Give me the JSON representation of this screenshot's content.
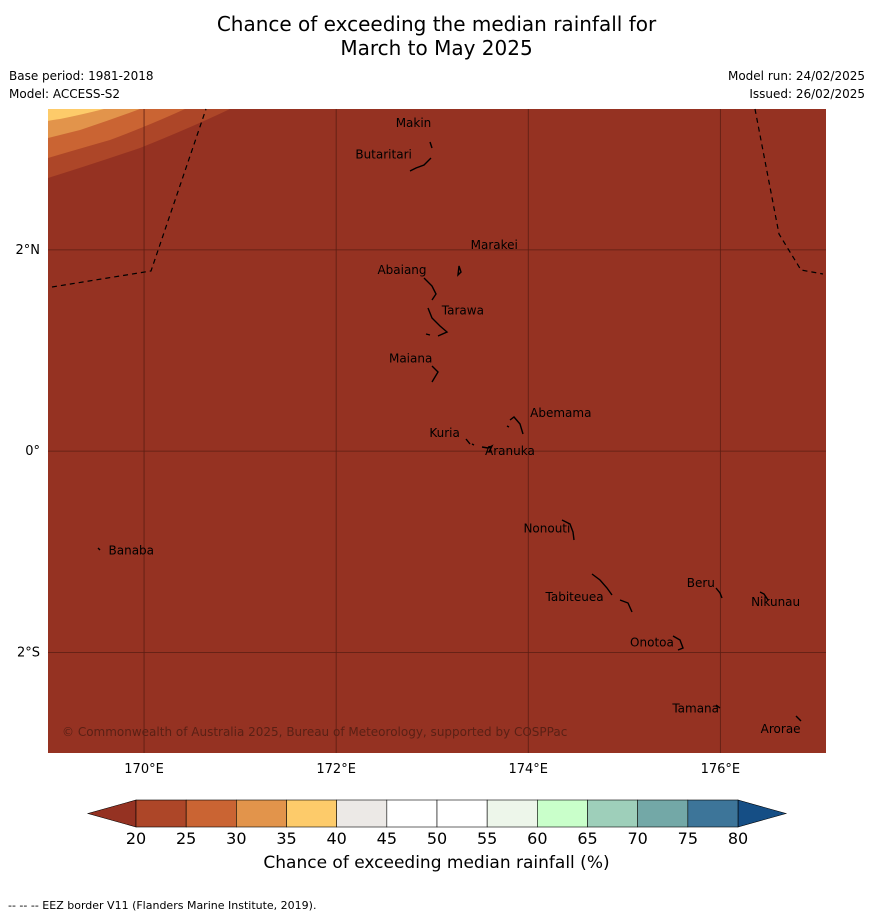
{
  "title_line1": "Chance of exceeding the median rainfall for",
  "title_line2": "March to May 2025",
  "base_period": "Base period: 1981-2018",
  "model": "Model: ACCESS-S2",
  "model_run": "Model run: 24/02/2025",
  "issued": "Issued: 26/02/2025",
  "map": {
    "lon_range": [
      169.0,
      177.1
    ],
    "lat_range": [
      -3.0,
      3.4
    ],
    "background_color": "#953222",
    "lat_ticks": [
      {
        "value": 2,
        "label": "2°N"
      },
      {
        "value": 0,
        "label": "0°"
      },
      {
        "value": -2,
        "label": "2°S"
      }
    ],
    "lon_ticks": [
      {
        "value": 170,
        "label": "170°E"
      },
      {
        "value": 172,
        "label": "172°E"
      },
      {
        "value": 174,
        "label": "174°E"
      },
      {
        "value": 176,
        "label": "176°E"
      }
    ],
    "places": [
      {
        "name": "Makin",
        "lon": 172.62,
        "lat": 3.26
      },
      {
        "name": "Butaritari",
        "lon": 172.2,
        "lat": 2.95
      },
      {
        "name": "Marakei",
        "lon": 173.4,
        "lat": 2.05
      },
      {
        "name": "Abaiang",
        "lon": 172.43,
        "lat": 1.8
      },
      {
        "name": "Tarawa",
        "lon": 173.1,
        "lat": 1.4
      },
      {
        "name": "Maiana",
        "lon": 172.55,
        "lat": 0.92
      },
      {
        "name": "Abemama",
        "lon": 174.02,
        "lat": 0.38
      },
      {
        "name": "Kuria",
        "lon": 172.97,
        "lat": 0.18
      },
      {
        "name": "Aranuka",
        "lon": 173.55,
        "lat": 0.0
      },
      {
        "name": "Nonouti",
        "lon": 173.95,
        "lat": -0.77
      },
      {
        "name": "Banaba",
        "lon": 169.63,
        "lat": -0.99
      },
      {
        "name": "Beru",
        "lon": 175.65,
        "lat": -1.31
      },
      {
        "name": "Tabiteuea",
        "lon": 174.18,
        "lat": -1.45
      },
      {
        "name": "Nikunau",
        "lon": 176.32,
        "lat": -1.5
      },
      {
        "name": "Onotoa",
        "lon": 175.06,
        "lat": -1.9
      },
      {
        "name": "Tamana",
        "lon": 175.5,
        "lat": -2.56
      },
      {
        "name": "Arorae",
        "lon": 176.42,
        "lat": -2.76
      }
    ],
    "copyright": "© Commonwealth of Australia 2025, Bureau of Meteorology, supported by COSPPac"
  },
  "colorbar": {
    "ticks": [
      "20",
      "25",
      "30",
      "35",
      "40",
      "45",
      "50",
      "55",
      "60",
      "65",
      "70",
      "75",
      "80"
    ],
    "colors": [
      "#ad4628",
      "#ca6433",
      "#e2944b",
      "#fdcb6a",
      "#ece9e6",
      "#ffffff",
      "#ffffff",
      "#edf6ea",
      "#c9ffca",
      "#9ecfba",
      "#73a8a7",
      "#3d7599"
    ],
    "low_color": "#953222",
    "high_color": "#154e85",
    "label": "Chance of exceeding median rainfall (%)"
  },
  "footer": "--  --  -- EEZ border V11 (Flanders Marine Institute, 2019)."
}
